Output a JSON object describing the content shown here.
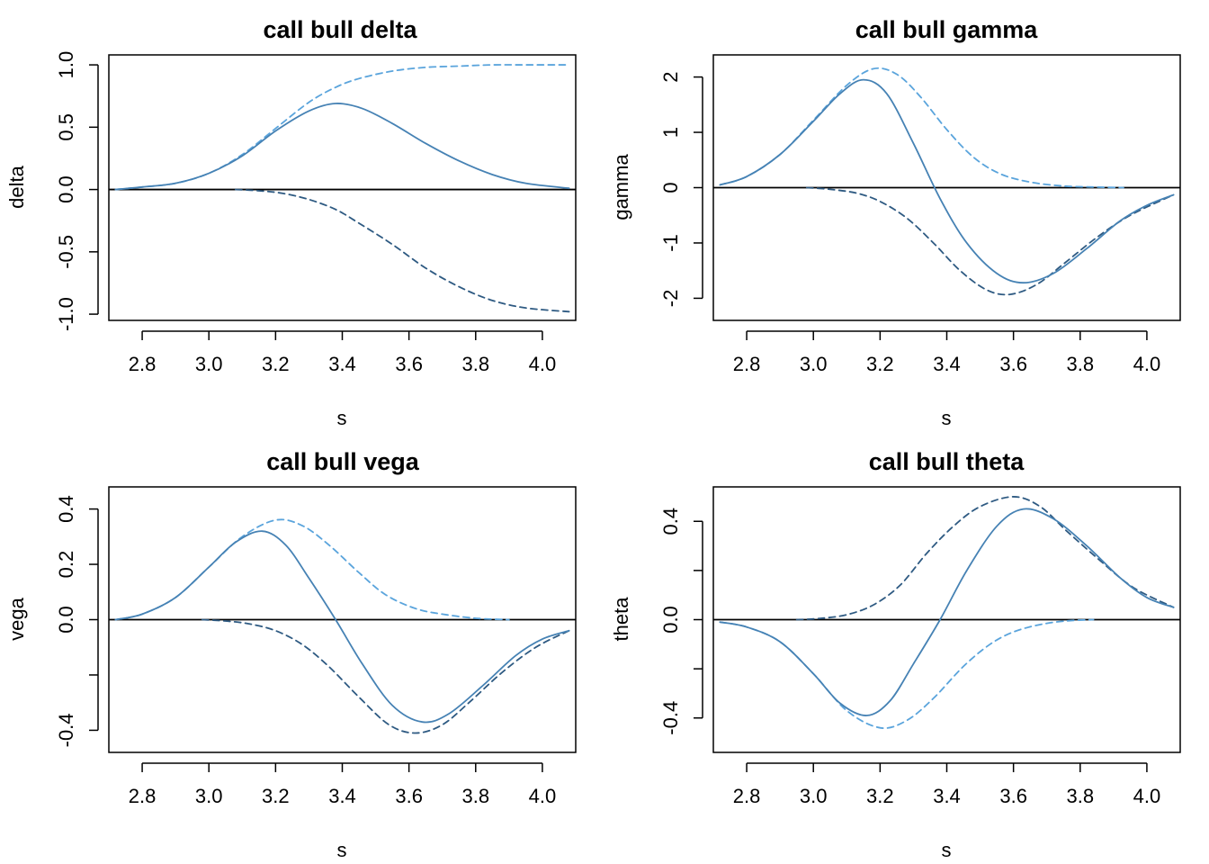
{
  "colors": {
    "solid": "#4682b4",
    "dashed_light": "#5aa4dc",
    "dashed_dark": "#2e5a82",
    "zero_line": "#000000",
    "frame": "#000000"
  },
  "chart_data": [
    {
      "type": "line",
      "title": "call bull delta",
      "xlabel": "s",
      "ylabel": "delta",
      "xlim": [
        2.7,
        4.1
      ],
      "ylim": [
        -1.05,
        1.08
      ],
      "xticks": [
        2.8,
        3.0,
        3.2,
        3.4,
        3.6,
        3.8,
        4.0
      ],
      "xtick_labels": [
        "2.8",
        "3.0",
        "3.2",
        "3.4",
        "3.6",
        "3.8",
        "4.0"
      ],
      "yticks": [
        -1.0,
        -0.5,
        0.0,
        0.5,
        1.0
      ],
      "ytick_labels": [
        "-1.0",
        "-0.5",
        "0.0",
        "0.5",
        "1.0"
      ],
      "hline": 0,
      "grid": false,
      "series": [
        {
          "style": "solid",
          "color": "#4682b4",
          "x": [
            2.72,
            2.8,
            2.9,
            3.0,
            3.1,
            3.2,
            3.3,
            3.38,
            3.46,
            3.55,
            3.65,
            3.75,
            3.85,
            3.95,
            4.08
          ],
          "y": [
            0.0,
            0.02,
            0.05,
            0.13,
            0.27,
            0.47,
            0.63,
            0.69,
            0.65,
            0.53,
            0.37,
            0.23,
            0.12,
            0.05,
            0.01
          ]
        },
        {
          "style": "dashed",
          "color": "#5aa4dc",
          "x": [
            2.72,
            2.8,
            2.9,
            3.0,
            3.1,
            3.2,
            3.3,
            3.38,
            3.45,
            3.55,
            3.65,
            3.75,
            3.85,
            3.95,
            4.08
          ],
          "y": [
            0.0,
            0.02,
            0.05,
            0.13,
            0.28,
            0.49,
            0.7,
            0.82,
            0.89,
            0.95,
            0.98,
            0.99,
            1.0,
            1.0,
            1.0
          ]
        },
        {
          "style": "dashed",
          "color": "#2e5a82",
          "x": [
            3.08,
            3.15,
            3.22,
            3.3,
            3.38,
            3.45,
            3.55,
            3.65,
            3.75,
            3.85,
            3.95,
            4.08
          ],
          "y": [
            0.0,
            -0.01,
            -0.03,
            -0.08,
            -0.16,
            -0.27,
            -0.44,
            -0.63,
            -0.78,
            -0.89,
            -0.95,
            -0.98
          ]
        }
      ]
    },
    {
      "type": "line",
      "title": "call bull gamma",
      "xlabel": "s",
      "ylabel": "gamma",
      "xlim": [
        2.7,
        4.1
      ],
      "ylim": [
        -2.4,
        2.4
      ],
      "xticks": [
        2.8,
        3.0,
        3.2,
        3.4,
        3.6,
        3.8,
        4.0
      ],
      "xtick_labels": [
        "2.8",
        "3.0",
        "3.2",
        "3.4",
        "3.6",
        "3.8",
        "4.0"
      ],
      "yticks": [
        -2,
        -1,
        0,
        1,
        2
      ],
      "ytick_labels": [
        "-2",
        "-1",
        "0",
        "1",
        "2"
      ],
      "hline": 0,
      "grid": false,
      "series": [
        {
          "style": "solid",
          "color": "#4682b4",
          "x": [
            2.72,
            2.8,
            2.9,
            3.0,
            3.08,
            3.15,
            3.22,
            3.3,
            3.38,
            3.46,
            3.55,
            3.63,
            3.72,
            3.82,
            3.92,
            4.0,
            4.08
          ],
          "y": [
            0.05,
            0.2,
            0.6,
            1.2,
            1.7,
            1.95,
            1.7,
            0.8,
            -0.2,
            -1.0,
            -1.55,
            -1.72,
            -1.55,
            -1.1,
            -0.6,
            -0.32,
            -0.13
          ]
        },
        {
          "style": "dashed",
          "color": "#5aa4dc",
          "x": [
            2.72,
            2.8,
            2.9,
            3.0,
            3.1,
            3.18,
            3.25,
            3.32,
            3.4,
            3.48,
            3.56,
            3.65,
            3.75,
            3.85,
            3.93
          ],
          "y": [
            0.05,
            0.2,
            0.6,
            1.22,
            1.85,
            2.15,
            2.05,
            1.65,
            1.05,
            0.55,
            0.25,
            0.1,
            0.03,
            0.01,
            0.0
          ]
        },
        {
          "style": "dashed",
          "color": "#2e5a82",
          "x": [
            2.98,
            3.05,
            3.13,
            3.2,
            3.28,
            3.36,
            3.44,
            3.52,
            3.59,
            3.67,
            3.75,
            3.85,
            3.95,
            4.08
          ],
          "y": [
            0.0,
            -0.03,
            -0.1,
            -0.25,
            -0.55,
            -1.0,
            -1.5,
            -1.85,
            -1.93,
            -1.75,
            -1.38,
            -0.9,
            -0.5,
            -0.13
          ]
        }
      ]
    },
    {
      "type": "line",
      "title": "call bull vega",
      "xlabel": "s",
      "ylabel": "vega",
      "xlim": [
        2.7,
        4.1
      ],
      "ylim": [
        -0.48,
        0.48
      ],
      "xticks": [
        2.8,
        3.0,
        3.2,
        3.4,
        3.6,
        3.8,
        4.0
      ],
      "xtick_labels": [
        "2.8",
        "3.0",
        "3.2",
        "3.4",
        "3.6",
        "3.8",
        "4.0"
      ],
      "yticks": [
        -0.4,
        -0.2,
        0.0,
        0.2,
        0.4
      ],
      "ytick_labels": [
        "-0.4",
        "",
        "0.0",
        "0.2",
        "0.4"
      ],
      "hline": 0,
      "grid": false,
      "series": [
        {
          "style": "solid",
          "color": "#4682b4",
          "x": [
            2.72,
            2.8,
            2.9,
            3.0,
            3.08,
            3.16,
            3.23,
            3.3,
            3.38,
            3.46,
            3.55,
            3.64,
            3.72,
            3.82,
            3.92,
            4.0,
            4.08
          ],
          "y": [
            0.0,
            0.02,
            0.08,
            0.19,
            0.28,
            0.32,
            0.27,
            0.15,
            0.0,
            -0.16,
            -0.31,
            -0.37,
            -0.34,
            -0.24,
            -0.13,
            -0.07,
            -0.04
          ]
        },
        {
          "style": "dashed",
          "color": "#5aa4dc",
          "x": [
            2.72,
            2.8,
            2.9,
            3.0,
            3.1,
            3.2,
            3.28,
            3.36,
            3.45,
            3.53,
            3.62,
            3.7,
            3.8,
            3.9
          ],
          "y": [
            0.0,
            0.02,
            0.08,
            0.19,
            0.3,
            0.36,
            0.34,
            0.27,
            0.17,
            0.09,
            0.04,
            0.02,
            0.005,
            0.0
          ]
        },
        {
          "style": "dashed",
          "color": "#2e5a82",
          "x": [
            2.98,
            3.05,
            3.12,
            3.2,
            3.28,
            3.36,
            3.45,
            3.54,
            3.62,
            3.7,
            3.78,
            3.88,
            3.98,
            4.08
          ],
          "y": [
            0.0,
            -0.005,
            -0.015,
            -0.04,
            -0.09,
            -0.17,
            -0.28,
            -0.38,
            -0.41,
            -0.38,
            -0.3,
            -0.19,
            -0.1,
            -0.04
          ]
        }
      ]
    },
    {
      "type": "line",
      "title": "call bull theta",
      "xlabel": "s",
      "ylabel": "theta",
      "xlim": [
        2.7,
        4.1
      ],
      "ylim": [
        -0.54,
        0.54
      ],
      "xticks": [
        2.8,
        3.0,
        3.2,
        3.4,
        3.6,
        3.8,
        4.0
      ],
      "xtick_labels": [
        "2.8",
        "3.0",
        "3.2",
        "3.4",
        "3.6",
        "3.8",
        "4.0"
      ],
      "yticks": [
        -0.4,
        -0.2,
        0.0,
        0.2,
        0.4
      ],
      "ytick_labels": [
        "-0.4",
        "",
        "0.0",
        "",
        "0.4"
      ],
      "hline": 0,
      "grid": false,
      "series": [
        {
          "style": "solid",
          "color": "#4682b4",
          "x": [
            2.72,
            2.8,
            2.9,
            3.0,
            3.08,
            3.16,
            3.23,
            3.3,
            3.38,
            3.46,
            3.55,
            3.63,
            3.72,
            3.82,
            3.92,
            4.0,
            4.08
          ],
          "y": [
            -0.01,
            -0.03,
            -0.09,
            -0.22,
            -0.34,
            -0.39,
            -0.33,
            -0.18,
            0.0,
            0.2,
            0.38,
            0.45,
            0.41,
            0.3,
            0.17,
            0.09,
            0.05
          ]
        },
        {
          "style": "dashed",
          "color": "#5aa4dc",
          "x": [
            2.72,
            2.8,
            2.9,
            3.0,
            3.1,
            3.2,
            3.28,
            3.36,
            3.45,
            3.53,
            3.6,
            3.68,
            3.76,
            3.84
          ],
          "y": [
            -0.01,
            -0.03,
            -0.09,
            -0.22,
            -0.37,
            -0.44,
            -0.41,
            -0.32,
            -0.19,
            -0.1,
            -0.05,
            -0.02,
            -0.005,
            0.0
          ]
        },
        {
          "style": "dashed",
          "color": "#2e5a82",
          "x": [
            2.95,
            3.02,
            3.1,
            3.18,
            3.26,
            3.34,
            3.42,
            3.5,
            3.6,
            3.68,
            3.76,
            3.86,
            3.96,
            4.08
          ],
          "y": [
            0.0,
            0.005,
            0.02,
            0.06,
            0.14,
            0.27,
            0.38,
            0.46,
            0.5,
            0.46,
            0.36,
            0.24,
            0.13,
            0.05
          ]
        }
      ]
    }
  ]
}
